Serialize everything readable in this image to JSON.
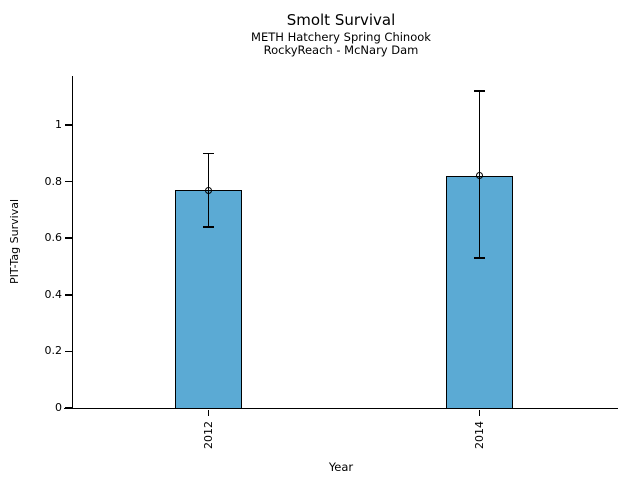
{
  "chart_data": {
    "type": "bar",
    "title": "Smolt Survival",
    "subtitle_line1": "METH Hatchery Spring Chinook",
    "subtitle_line2": "RockyReach - McNary Dam",
    "xlabel": "Year",
    "ylabel": "PIT-Tag Survival",
    "categories": [
      "2012",
      "2014"
    ],
    "values": [
      0.77,
      0.82
    ],
    "error_low": [
      0.64,
      0.53
    ],
    "error_high": [
      0.9,
      1.12
    ],
    "ylim": [
      0,
      1.17
    ],
    "yticks": [
      0,
      0.2,
      0.4,
      0.6,
      0.8,
      1
    ],
    "ytick_labels": [
      "0",
      "0.2",
      "0.4",
      "0.6",
      "0.8",
      "1"
    ],
    "grid": false,
    "legend": "none",
    "marker": "open-circle",
    "colors": {
      "bar_fill": "#5BAAD4",
      "bar_edge": "#000000",
      "text": "#000000"
    }
  }
}
